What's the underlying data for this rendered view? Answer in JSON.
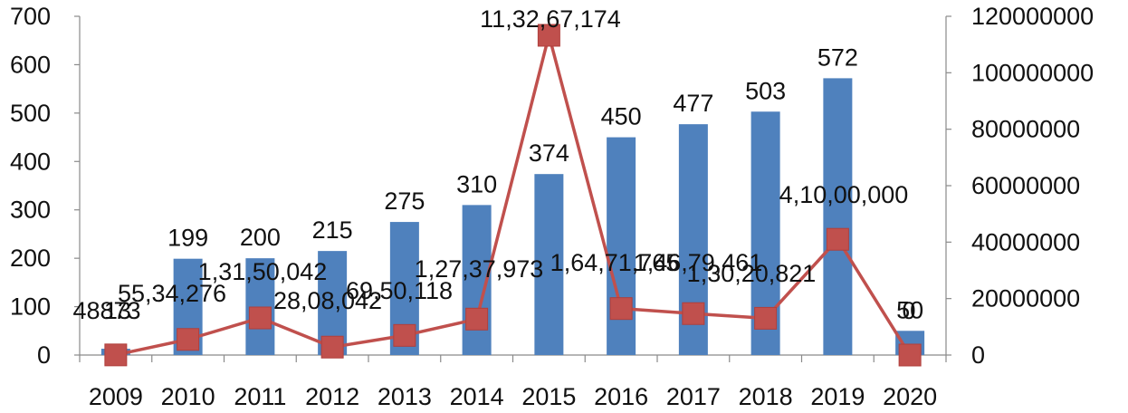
{
  "chart_data": {
    "type": "bar",
    "categories": [
      "2009",
      "2010",
      "2011",
      "2012",
      "2013",
      "2014",
      "2015",
      "2016",
      "2017",
      "2018",
      "2019",
      "2020"
    ],
    "series": [
      {
        "type": "bar",
        "axis": "left",
        "color": "#4f81bd",
        "values": [
          13,
          199,
          200,
          215,
          275,
          310,
          374,
          450,
          477,
          503,
          572,
          50
        ],
        "value_labels": [
          "13",
          "199",
          "200",
          "215",
          "275",
          "310",
          "374",
          "450",
          "477",
          "503",
          "572",
          "50"
        ]
      },
      {
        "type": "line",
        "axis": "right",
        "color": "#c0504d",
        "values": [
          48873,
          5534276,
          13150042,
          2808042,
          6950118,
          12737973,
          113267174,
          16471765,
          14679461,
          13020821,
          41000000,
          0
        ],
        "value_labels": [
          "48873",
          "55,34,276",
          "1,31,50,042",
          "28,08,042",
          "69,50,118",
          "1,27,37,973",
          "11,32,67,174",
          "1,64,71,765",
          "1,46,79,461",
          "1,30,20,821",
          "4,10,00,000",
          "0"
        ]
      }
    ],
    "y_left": {
      "min": 0,
      "max": 700,
      "ticks": [
        "0",
        "100",
        "200",
        "300",
        "400",
        "500",
        "600",
        "700"
      ]
    },
    "y_right": {
      "min": 0,
      "max": 120000000,
      "ticks": [
        "0",
        "20000000",
        "40000000",
        "60000000",
        "80000000",
        "100000000",
        "120000000"
      ]
    },
    "grid": false,
    "legend": "none"
  }
}
